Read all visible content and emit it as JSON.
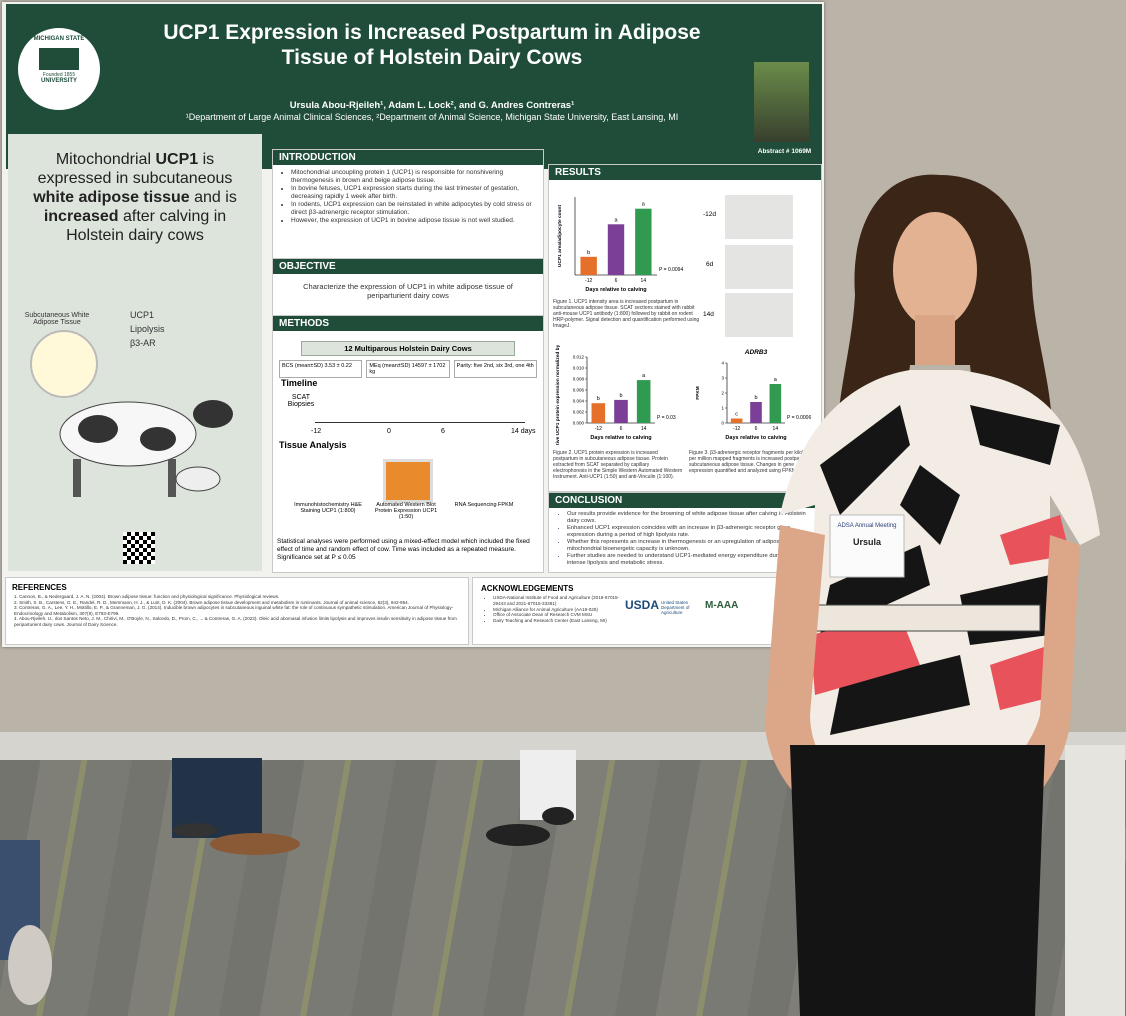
{
  "poster": {
    "header": {
      "logo_top": "MICHIGAN STATE",
      "logo_bottom": "UNIVERSITY",
      "logo_founded": "Founded 1855",
      "title": "UCP1 Expression is Increased Postpartum in Adipose Tissue of Holstein Dairy Cows",
      "authors": "Ursula Abou-Rjeileh¹, Adam L. Lock², and G. Andres Contreras¹",
      "affiliations": "¹Department of Large Animal Clinical Sciences, ²Department of Animal Science, Michigan State University, East Lansing, MI",
      "abstract": "Abstract # 1069M"
    },
    "summary": {
      "parts": [
        "Mitochondrial ",
        "UCP1",
        " is expressed in subcutaneous ",
        "white adipose tissue",
        " and is ",
        "increased",
        " after calving in Holstein dairy cows"
      ],
      "tissue_label": "Subcutaneous White Adipose Tissue",
      "markers": [
        "UCP1",
        "Lipolysis",
        "β3-AR"
      ]
    },
    "introduction": {
      "heading": "INTRODUCTION",
      "bullets": [
        "Mitochondrial uncoupling protein 1 (UCP1) is responsible for nonshivering thermogenesis in brown and beige adipose tissue.",
        "In bovine fetuses, UCP1 expression starts during the last trimester of gestation, decreasing rapidly 1 week after birth.",
        "In rodents, UCP1 expression can be reinstated in white adipocytes by cold stress or direct β3-adrenergic receptor stimulation.",
        "However, the expression of UCP1 in bovine adipose tissue is not well studied."
      ]
    },
    "objective": {
      "heading": "OBJECTIVE",
      "text": "Characterize the expression of UCP1 in white adipose tissue of periparturient dairy cows"
    },
    "methods": {
      "heading": "METHODS",
      "cohort": "12 Multiparous Holstein Dairy Cows",
      "stats": [
        "BCS (mean±SD) 3.53 ± 0.22",
        "MEq (mean±SD) 14597 ± 1702 kg",
        "Parity: five 2nd, six 3rd, one 4th"
      ],
      "timeline_heading": "Timeline",
      "biopsy_label": "SCAT Biopsies",
      "timeline_ticks": [
        "-12",
        "0",
        "6",
        "14 days"
      ],
      "analysis_heading": "Tissue Analysis",
      "analyses": [
        "Immunohistochemistry H&E Staining UCP1 (1:800)",
        "Automated Western Blot Protein Expression UCP1 (1:50)",
        "RNA Sequencing FPKM"
      ],
      "statistics": "Statistical analyses were performed using a mixed-effect model which included the fixed effect of time and random effect of cow. Time was included as a repeated measure. Significance set at P ≤ 0.05"
    },
    "results": {
      "heading": "RESULTS",
      "image_days": [
        "-12d",
        "6d",
        "14d"
      ],
      "fig1_caption": "Figure 1. UCP1 intensity area is increased postpartum in subcutaneous adipose tissue. SCAT sections stained with rabbit anti-mouse UCP1 antibody (1:800) followed by rabbit on rodent HRP-polymer. Signal detection and quantification performed using ImageJ.",
      "fig2_caption": "Figure 2. UCP1 protein expression is increased postpartum in subcutaneous adipose tissue. Protein extracted from SCAT separated by capillary electrophoresis in the Simple Western Automated Western Instrument. Anti-UCP1 (1:50) and anti-Vinculin (1:100).",
      "fig3_caption": "Figure 3. β3-adrenergic receptor fragments per kilobase per million mapped fragments is increased postpartum in subcutaneous adipose tissue. Changes in gene expression quantified and analyzed using FPKM."
    },
    "conclusion": {
      "heading": "CONCLUSION",
      "bullets": [
        "Our results provide evidence for the browning of white adipose tissue after calving in Holstein dairy cows.",
        "Enhanced UCP1 expression coincides with an increase in β3-adrenergic receptor gene expression during a period of high lipolysis rate.",
        "Whether this represents an increase in thermogenesis or an upregulation of adipose tissue mitochondrial bioenergetic capacity is unknown.",
        "Further studies are needed to understand UCP1-mediated energy expenditure during times of intense lipolysis and metabolic stress."
      ]
    },
    "references": {
      "heading": "REFERENCES",
      "items": [
        "1. Cannon, B., & Nedergaard, J. A. N. (2004). Brown adipose tissue: function and physiological significance. Physiological reviews.",
        "2. Smith, S. B., Carstens, G. E., Randel, R. D., Mersmann, H. J., & Lunt, D. K. (2004). Brown adipose tissue development and metabolism in ruminants. Journal of animal science, 82(3), 942-954.",
        "3. Contreras, G. A., Lee, Y. H., Mottillo, E. P., & Granneman, J. G. (2014). Inducible brown adipocytes in subcutaneous inguinal white fat: the role of continuous sympathetic stimulation. American Journal of Physiology-Endocrinology and Metabolism, 307(9), E793-E799.",
        "4. Abou-Rjeileh, U., dos Santos Neto, J. M., Chirivi, M., O'Boyle, N., Salcedo, D., Prom, C., ... & Contreras, G. A. (2023). Oleic acid abomasal infusion limits lipolysis and improves insulin sensitivity in adipose tissue from periparturient dairy cows. Journal of Dairy Science."
      ]
    },
    "acknowledgements": {
      "heading": "ACKNOWLEDGEMENTS",
      "items": [
        "USDA-National Institute of Food and Agriculture (2019-67015-29443 and 2021-67015-33391)",
        "Michigan Alliance for Animal Agriculture (AA19-028)",
        "Office of Associate Dean of Research CVM MSU",
        "Dairy Teaching and Research Center (East Lansing, MI)"
      ],
      "usda": "USDA",
      "usda_name": "United States Department of Agriculture",
      "maaa": "M-AAA"
    },
    "badge": {
      "meeting": "ADSA Annual Meeting",
      "name": "Ursula"
    }
  },
  "chart_data": [
    {
      "type": "bar",
      "y_label": "UCP1 area/adipocyte count",
      "x_label": "Days relative to calving",
      "categories": [
        "-12",
        "6",
        "14"
      ],
      "values": [
        0.28,
        0.78,
        1.02
      ],
      "colors": [
        "#e4702a",
        "#7b3f98",
        "#2f9a50"
      ],
      "letters": [
        "b",
        "a",
        "a"
      ],
      "ylim": [
        0,
        1.2
      ],
      "p_label": "P = 0.0094"
    },
    {
      "type": "bar",
      "y_label": "Relative UCP1 protein expression normalized by Vinculin",
      "x_label": "Days relative to calving",
      "categories": [
        "-12",
        "6",
        "14"
      ],
      "values": [
        0.0036,
        0.0042,
        0.0078
      ],
      "colors": [
        "#e4702a",
        "#7b3f98",
        "#2f9a50"
      ],
      "letters": [
        "b",
        "b",
        "a"
      ],
      "ylim": [
        0,
        0.012
      ],
      "yticks": [
        {
          "value": 0,
          "label": "0.000"
        },
        {
          "value": 0.002,
          "label": "0.002"
        },
        {
          "value": 0.004,
          "label": "0.004"
        },
        {
          "value": 0.006,
          "label": "0.006"
        },
        {
          "value": 0.008,
          "label": "0.008"
        },
        {
          "value": 0.01,
          "label": "0.010"
        },
        {
          "value": 0.012,
          "label": "0.012"
        }
      ],
      "p_label": "P = 0.03"
    },
    {
      "type": "bar",
      "title": "ADRB3",
      "y_label": "FPKM",
      "x_label": "Days relative to calving",
      "categories": [
        "-12",
        "6",
        "14"
      ],
      "values": [
        0.3,
        1.4,
        2.6
      ],
      "colors": [
        "#e4702a",
        "#7b3f98",
        "#2f9a50"
      ],
      "letters": [
        "c",
        "b",
        "a"
      ],
      "ylim": [
        0,
        4
      ],
      "yticks": [
        0,
        1,
        2,
        3,
        4
      ],
      "p_label": "P = 0.0006"
    }
  ]
}
